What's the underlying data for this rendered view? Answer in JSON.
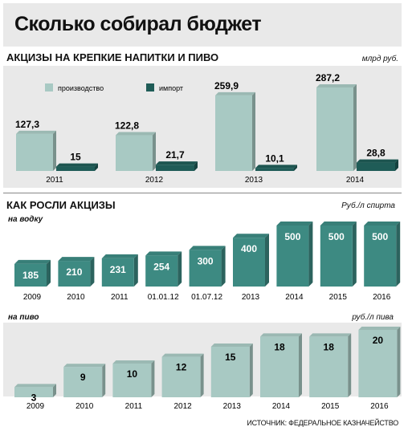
{
  "title": "Сколько собирал бюджет",
  "section1": {
    "title": "АКЦИЗЫ НА КРЕПКИЕ НАПИТКИ И ПИВО",
    "unit": "млрд руб."
  },
  "section2": {
    "title": "КАК РОСЛИ АКЦИЗЫ",
    "unit": "Руб./л спирта"
  },
  "vodka_label": "на водку",
  "beer_label": "на пиво",
  "beer_unit": "руб./л пива",
  "source": "ИСТОЧНИК: ФЕДЕРАЛЬНОЕ КАЗНАЧЕЙСТВО",
  "colors": {
    "production": "#a8c9c3",
    "import": "#1f5c57",
    "vodka": "#3d8a82",
    "beer": "#a8c9c3",
    "bg_panel": "#e9e9e9"
  },
  "chart_data": [
    {
      "type": "bar",
      "title": "АКЦИЗЫ НА КРЕПКИЕ НАПИТКИ И ПИВО",
      "unit": "млрд руб.",
      "categories": [
        "2011",
        "2012",
        "2013",
        "2014"
      ],
      "series": [
        {
          "name": "производство",
          "values": [
            127.3,
            122.8,
            259.9,
            287.2
          ],
          "labels": [
            "127,3",
            "122,8",
            "259,9",
            "287,2"
          ]
        },
        {
          "name": "импорт",
          "values": [
            15,
            21.7,
            10.1,
            28.8
          ],
          "labels": [
            "15",
            "21,7",
            "10,1",
            "28,8"
          ]
        }
      ],
      "legend": "top-left"
    },
    {
      "type": "bar",
      "title": "на водку",
      "unit": "Руб./л спирта",
      "categories": [
        "2009",
        "2010",
        "2011",
        "01.01.12",
        "01.07.12",
        "2013",
        "2014",
        "2015",
        "2016"
      ],
      "values": [
        185,
        210,
        231,
        254,
        300,
        400,
        500,
        500,
        500
      ]
    },
    {
      "type": "bar",
      "title": "на пиво",
      "unit": "руб./л пива",
      "categories": [
        "2009",
        "2010",
        "2011",
        "2012",
        "2013",
        "2014",
        "2015",
        "2016"
      ],
      "values": [
        3,
        9,
        10,
        12,
        15,
        18,
        18,
        20
      ]
    }
  ]
}
